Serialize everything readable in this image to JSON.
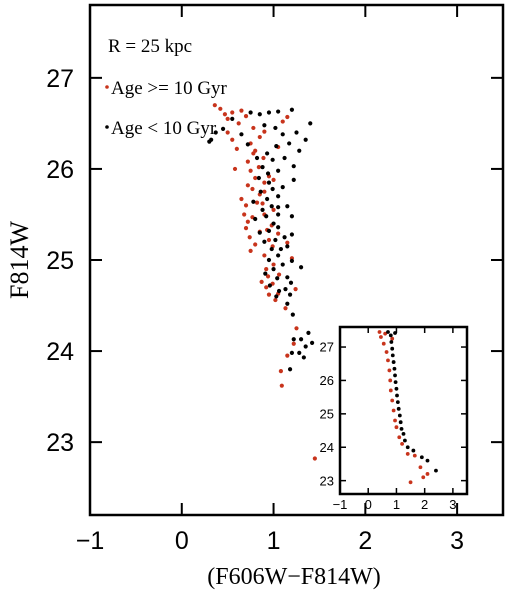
{
  "chart_data": [
    {
      "type": "scatter",
      "panel": "main",
      "xlabel": "(F606W−F814W)",
      "ylabel": "F814W",
      "xlim": [
        -1,
        3.5
      ],
      "ylim": [
        27.8,
        22.2
      ],
      "y_inverted": true,
      "xticks": [
        -1,
        0,
        1,
        2,
        3
      ],
      "xtick_labels": [
        "−1",
        "0",
        "1",
        "2",
        "3"
      ],
      "yticks": [
        23,
        24,
        25,
        26,
        27
      ],
      "ytick_labels": [
        "23",
        "24",
        "25",
        "26",
        "27"
      ],
      "grid": false,
      "annotation": "R = 25 kpc",
      "legend_position": "top-left",
      "series": [
        {
          "name": "Age >= 10 Gyr",
          "color": "#c8341c",
          "points": [
            [
              1.45,
              22.82
            ],
            [
              1.78,
              23.05
            ],
            [
              1.81,
              23.12
            ],
            [
              1.75,
              23.35
            ],
            [
              1.09,
              23.62
            ],
            [
              1.08,
              23.78
            ],
            [
              1.15,
              23.95
            ],
            [
              1.22,
              24.08
            ],
            [
              1.25,
              24.25
            ],
            [
              1.13,
              24.47
            ],
            [
              1.02,
              24.56
            ],
            [
              0.95,
              24.62
            ],
            [
              1.05,
              24.63
            ],
            [
              1.24,
              24.68
            ],
            [
              0.92,
              24.7
            ],
            [
              0.99,
              24.74
            ],
            [
              0.87,
              24.76
            ],
            [
              0.94,
              24.82
            ],
            [
              1.06,
              24.84
            ],
            [
              0.92,
              24.9
            ],
            [
              1.0,
              24.95
            ],
            [
              1.2,
              25.02
            ],
            [
              0.9,
              25.05
            ],
            [
              0.75,
              25.1
            ],
            [
              0.99,
              25.15
            ],
            [
              0.8,
              25.17
            ],
            [
              1.15,
              25.19
            ],
            [
              0.95,
              25.22
            ],
            [
              0.74,
              25.25
            ],
            [
              1.05,
              25.29
            ],
            [
              0.85,
              25.31
            ],
            [
              0.7,
              25.35
            ],
            [
              0.98,
              25.38
            ],
            [
              0.72,
              25.42
            ],
            [
              0.77,
              25.47
            ],
            [
              0.9,
              25.5
            ],
            [
              1.0,
              25.55
            ],
            [
              0.7,
              25.6
            ],
            [
              0.82,
              25.63
            ],
            [
              0.65,
              25.67
            ],
            [
              0.85,
              25.72
            ],
            [
              0.9,
              25.75
            ],
            [
              0.77,
              25.78
            ],
            [
              0.72,
              25.82
            ],
            [
              0.9,
              25.85
            ],
            [
              0.8,
              25.9
            ],
            [
              0.95,
              25.92
            ],
            [
              0.75,
              25.98
            ],
            [
              0.58,
              26.0
            ],
            [
              0.84,
              26.02
            ],
            [
              0.72,
              26.08
            ],
            [
              0.89,
              26.12
            ],
            [
              0.78,
              26.17
            ],
            [
              0.6,
              26.22
            ],
            [
              1.05,
              26.24
            ],
            [
              0.75,
              26.28
            ],
            [
              0.55,
              26.32
            ],
            [
              0.85,
              26.35
            ],
            [
              0.5,
              26.4
            ],
            [
              0.9,
              26.41
            ],
            [
              0.78,
              26.45
            ],
            [
              0.62,
              26.5
            ],
            [
              1.1,
              26.52
            ],
            [
              0.5,
              26.55
            ],
            [
              1.15,
              26.57
            ],
            [
              0.47,
              26.6
            ],
            [
              0.65,
              26.64
            ],
            [
              0.42,
              26.66
            ],
            [
              0.36,
              26.7
            ],
            [
              0.55,
              26.62
            ],
            [
              0.7,
              26.58
            ],
            [
              0.8,
              26.2
            ],
            [
              1.0,
              25.88
            ],
            [
              0.68,
              25.5
            ],
            [
              0.93,
              25.33
            ],
            [
              0.88,
              25.62
            ]
          ]
        },
        {
          "name": "Age < 10 Gyr",
          "color": "#000000",
          "points": [
            [
              1.88,
              23.22
            ],
            [
              1.88,
              23.75
            ],
            [
              1.18,
              23.8
            ],
            [
              1.33,
              23.93
            ],
            [
              1.2,
              23.98
            ],
            [
              1.28,
              23.98
            ],
            [
              1.35,
              24.05
            ],
            [
              1.42,
              24.09
            ],
            [
              1.22,
              24.13
            ],
            [
              1.3,
              24.13
            ],
            [
              1.38,
              24.2
            ],
            [
              1.21,
              24.4
            ],
            [
              1.15,
              24.52
            ],
            [
              1.03,
              24.6
            ],
            [
              1.06,
              24.66
            ],
            [
              1.13,
              24.68
            ],
            [
              0.96,
              24.72
            ],
            [
              1.19,
              24.75
            ],
            [
              1.15,
              24.81
            ],
            [
              1.04,
              24.8
            ],
            [
              0.91,
              24.85
            ],
            [
              1.0,
              24.9
            ],
            [
              1.1,
              24.95
            ],
            [
              1.2,
              24.99
            ],
            [
              0.95,
              25.0
            ],
            [
              1.05,
              25.05
            ],
            [
              0.98,
              25.12
            ],
            [
              1.08,
              25.12
            ],
            [
              1.15,
              25.15
            ],
            [
              0.9,
              25.2
            ],
            [
              1.02,
              25.22
            ],
            [
              1.12,
              25.25
            ],
            [
              1.2,
              25.28
            ],
            [
              0.85,
              25.3
            ],
            [
              0.95,
              25.32
            ],
            [
              1.05,
              25.36
            ],
            [
              1.0,
              25.4
            ],
            [
              0.8,
              25.45
            ],
            [
              0.92,
              25.48
            ],
            [
              1.05,
              25.5
            ],
            [
              1.2,
              25.48
            ],
            [
              0.88,
              25.55
            ],
            [
              0.98,
              25.59
            ],
            [
              1.15,
              25.59
            ],
            [
              0.78,
              25.64
            ],
            [
              0.93,
              25.67
            ],
            [
              1.05,
              25.7
            ],
            [
              0.86,
              25.75
            ],
            [
              0.99,
              25.78
            ],
            [
              1.1,
              25.8
            ],
            [
              0.95,
              25.85
            ],
            [
              1.22,
              25.88
            ],
            [
              0.84,
              25.9
            ],
            [
              0.94,
              25.95
            ],
            [
              1.05,
              25.98
            ],
            [
              0.88,
              26.02
            ],
            [
              1.22,
              26.03
            ],
            [
              0.99,
              26.1
            ],
            [
              1.12,
              26.12
            ],
            [
              0.93,
              26.17
            ],
            [
              1.28,
              26.2
            ],
            [
              1.03,
              26.25
            ],
            [
              1.17,
              26.28
            ],
            [
              1.35,
              26.32
            ],
            [
              1.1,
              26.38
            ],
            [
              1.25,
              26.4
            ],
            [
              0.32,
              26.32
            ],
            [
              0.37,
              26.4
            ],
            [
              0.45,
              26.44
            ],
            [
              1.02,
              26.45
            ],
            [
              1.4,
              26.5
            ],
            [
              0.55,
              26.55
            ],
            [
              0.85,
              26.6
            ],
            [
              0.95,
              26.62
            ],
            [
              1.05,
              26.63
            ],
            [
              1.2,
              26.65
            ],
            [
              0.75,
              26.62
            ],
            [
              0.3,
              26.3
            ],
            [
              0.72,
              26.27
            ],
            [
              0.65,
              26.38
            ],
            [
              0.9,
              26.48
            ],
            [
              1.3,
              24.92
            ],
            [
              1.18,
              24.62
            ],
            [
              1.05,
              25.58
            ],
            [
              0.82,
              26.12
            ]
          ]
        }
      ]
    },
    {
      "type": "scatter",
      "panel": "inset",
      "xlim": [
        -1,
        3.5
      ],
      "ylim": [
        27.6,
        22.6
      ],
      "y_inverted": true,
      "xticks": [
        -1,
        0,
        1,
        2,
        3
      ],
      "xtick_labels": [
        "−1",
        "0",
        "1",
        "2",
        "3"
      ],
      "yticks": [
        23,
        24,
        25,
        26,
        27
      ],
      "ytick_labels": [
        "23",
        "24",
        "25",
        "26",
        "27"
      ],
      "series": [
        {
          "name": "Age >= 10 Gyr",
          "color": "#c8341c",
          "points": [
            [
              1.5,
              22.95
            ],
            [
              1.95,
              23.1
            ],
            [
              2.1,
              23.2
            ],
            [
              1.85,
              23.4
            ],
            [
              1.65,
              23.75
            ],
            [
              1.4,
              23.8
            ],
            [
              1.2,
              24.1
            ],
            [
              1.1,
              24.3
            ],
            [
              1.0,
              24.6
            ],
            [
              0.95,
              24.8
            ],
            [
              0.9,
              25.1
            ],
            [
              0.85,
              25.4
            ],
            [
              0.8,
              25.7
            ],
            [
              0.78,
              26.0
            ],
            [
              0.75,
              26.3
            ],
            [
              0.7,
              26.6
            ],
            [
              0.65,
              26.85
            ],
            [
              0.55,
              27.1
            ],
            [
              0.45,
              27.3
            ],
            [
              0.4,
              27.45
            ],
            [
              0.6,
              27.4
            ],
            [
              0.85,
              27.25
            ]
          ]
        },
        {
          "name": "Age < 10 Gyr",
          "color": "#000000",
          "points": [
            [
              2.4,
              23.3
            ],
            [
              2.1,
              23.6
            ],
            [
              1.9,
              23.7
            ],
            [
              1.6,
              23.9
            ],
            [
              1.4,
              24.0
            ],
            [
              1.3,
              24.2
            ],
            [
              1.25,
              24.4
            ],
            [
              1.18,
              24.55
            ],
            [
              1.15,
              24.75
            ],
            [
              1.12,
              24.95
            ],
            [
              1.08,
              25.15
            ],
            [
              1.05,
              25.35
            ],
            [
              1.02,
              25.55
            ],
            [
              1.0,
              25.75
            ],
            [
              0.97,
              25.95
            ],
            [
              0.95,
              26.15
            ],
            [
              0.93,
              26.35
            ],
            [
              0.9,
              26.55
            ],
            [
              0.87,
              26.75
            ],
            [
              0.85,
              26.95
            ],
            [
              0.82,
              27.15
            ],
            [
              0.8,
              27.35
            ],
            [
              0.95,
              27.42
            ],
            [
              0.7,
              27.45
            ]
          ]
        }
      ]
    }
  ]
}
